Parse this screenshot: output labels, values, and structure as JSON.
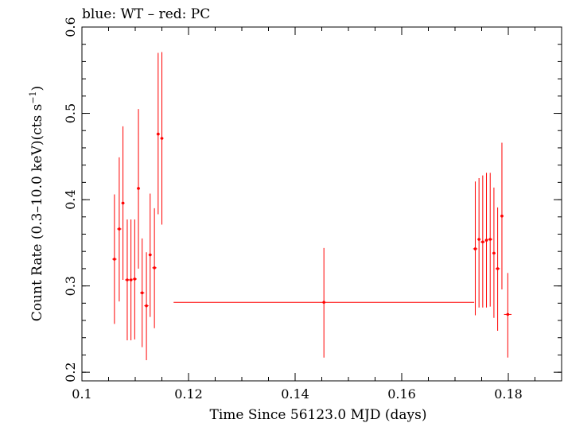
{
  "chart_data": {
    "type": "scatter",
    "title": "blue: WT – red: PC",
    "xlabel": "Time Since 56123.0 MJD (days)",
    "ylabel": "Count Rate (0.3–10.0 keV)(cts s",
    "ylabel_sup": "−1",
    "ylabel_tail": ")",
    "xlim": [
      0.1,
      0.19
    ],
    "ylim": [
      0.19,
      0.6
    ],
    "xticks": [
      0.1,
      0.12,
      0.14,
      0.16,
      0.18
    ],
    "xtick_labels": [
      "0.1",
      "0.12",
      "0.14",
      "0.16",
      "0.18"
    ],
    "yticks": [
      0.2,
      0.3,
      0.4,
      0.5,
      0.6
    ],
    "ytick_labels": [
      "0.2",
      "0.3",
      "0.4",
      "0.5",
      "0.6"
    ],
    "grid": false,
    "series": [
      {
        "color": "#ff0000",
        "points": [
          {
            "x": 0.1061,
            "y": 0.331,
            "xerr": 0.0004,
            "ylo": 0.256,
            "yhi": 0.406
          },
          {
            "x": 0.107,
            "y": 0.366,
            "xerr": 0.0004,
            "ylo": 0.282,
            "yhi": 0.449
          },
          {
            "x": 0.1077,
            "y": 0.396,
            "xerr": 0.0003,
            "ylo": 0.307,
            "yhi": 0.485
          },
          {
            "x": 0.1085,
            "y": 0.307,
            "xerr": 0.0004,
            "ylo": 0.237,
            "yhi": 0.377
          },
          {
            "x": 0.1092,
            "y": 0.307,
            "xerr": 0.0003,
            "ylo": 0.237,
            "yhi": 0.377
          },
          {
            "x": 0.1099,
            "y": 0.308,
            "xerr": 0.0004,
            "ylo": 0.238,
            "yhi": 0.377
          },
          {
            "x": 0.1106,
            "y": 0.413,
            "xerr": 0.0003,
            "ylo": 0.32,
            "yhi": 0.505
          },
          {
            "x": 0.1113,
            "y": 0.292,
            "xerr": 0.0004,
            "ylo": 0.229,
            "yhi": 0.355
          },
          {
            "x": 0.1121,
            "y": 0.277,
            "xerr": 0.0004,
            "ylo": 0.214,
            "yhi": 0.339
          },
          {
            "x": 0.1128,
            "y": 0.336,
            "xerr": 0.0003,
            "ylo": 0.264,
            "yhi": 0.407
          },
          {
            "x": 0.1136,
            "y": 0.321,
            "xerr": 0.0004,
            "ylo": 0.251,
            "yhi": 0.39
          },
          {
            "x": 0.1143,
            "y": 0.476,
            "xerr": 0.0003,
            "ylo": 0.383,
            "yhi": 0.57
          },
          {
            "x": 0.115,
            "y": 0.471,
            "xerr": 0.0003,
            "ylo": 0.371,
            "yhi": 0.571
          },
          {
            "x": 0.1454,
            "y": 0.281,
            "xerr": 0.0282,
            "ylo": 0.217,
            "yhi": 0.344
          },
          {
            "x": 0.1738,
            "y": 0.343,
            "xerr": 0.0004,
            "ylo": 0.266,
            "yhi": 0.421
          },
          {
            "x": 0.1745,
            "y": 0.354,
            "xerr": 0.0003,
            "ylo": 0.275,
            "yhi": 0.425
          },
          {
            "x": 0.1752,
            "y": 0.351,
            "xerr": 0.0004,
            "ylo": 0.275,
            "yhi": 0.428
          },
          {
            "x": 0.1759,
            "y": 0.353,
            "xerr": 0.0003,
            "ylo": 0.275,
            "yhi": 0.431
          },
          {
            "x": 0.1766,
            "y": 0.354,
            "xerr": 0.0004,
            "ylo": 0.276,
            "yhi": 0.431
          },
          {
            "x": 0.1773,
            "y": 0.338,
            "xerr": 0.0003,
            "ylo": 0.263,
            "yhi": 0.414
          },
          {
            "x": 0.178,
            "y": 0.32,
            "xerr": 0.0004,
            "ylo": 0.248,
            "yhi": 0.391
          },
          {
            "x": 0.1788,
            "y": 0.381,
            "xerr": 0.0003,
            "ylo": 0.296,
            "yhi": 0.466
          },
          {
            "x": 0.1799,
            "y": 0.267,
            "xerr": 0.0007,
            "ylo": 0.217,
            "yhi": 0.315
          }
        ]
      }
    ]
  }
}
